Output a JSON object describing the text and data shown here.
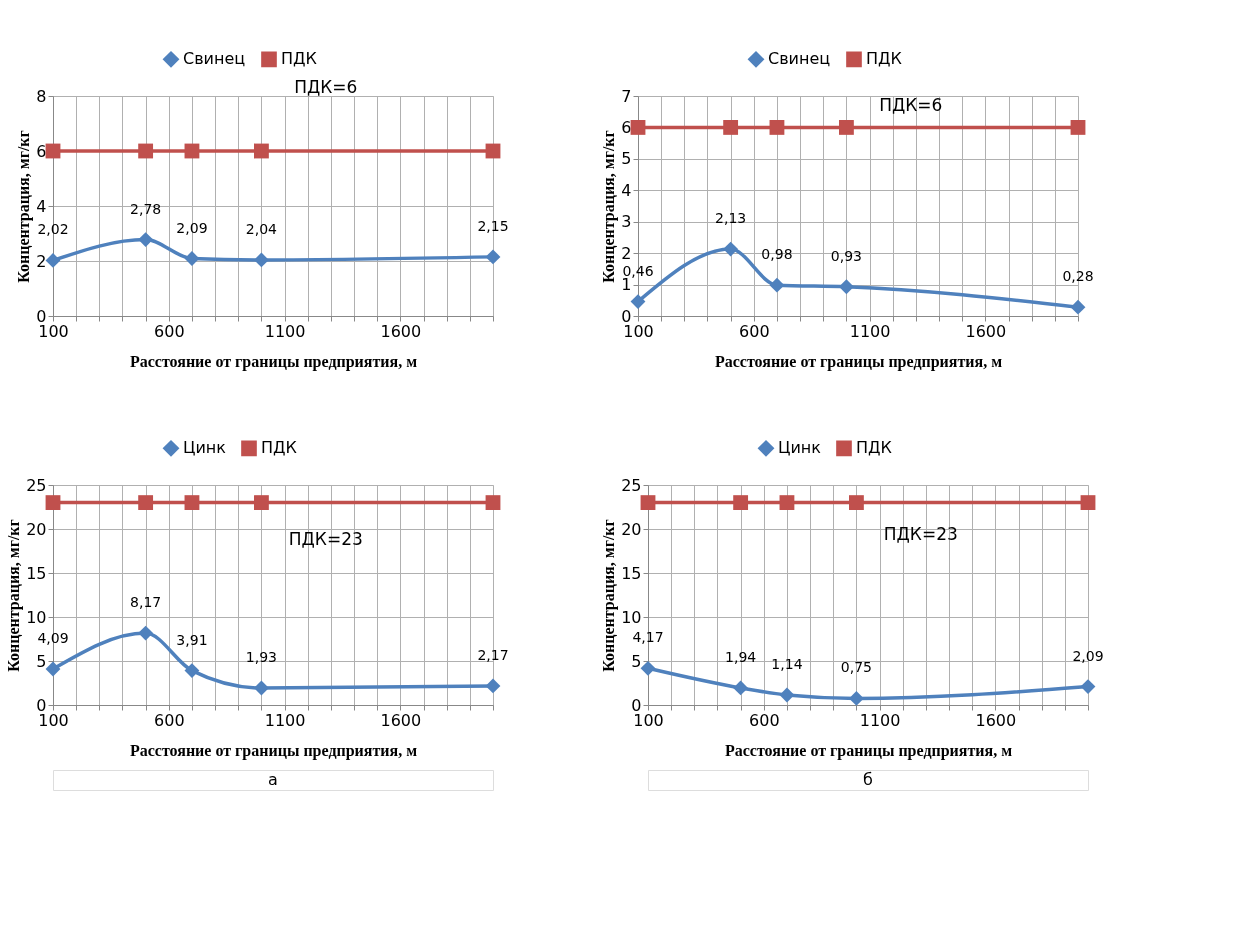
{
  "chart_data": [
    {
      "type": "line",
      "xlabel": "Расстояние от границы предприятия, м",
      "ylabel": "Концентрация, мг/кг",
      "x": [
        100,
        500,
        700,
        1000,
        2000
      ],
      "xlim": [
        100,
        2000
      ],
      "xticks": [
        100,
        {
          "value": 200,
          "label": null
        },
        {
          "value": 300,
          "label": null
        },
        {
          "value": 400,
          "label": null
        },
        {
          "value": 500,
          "label": null
        },
        600,
        {
          "value": 700,
          "label": null
        },
        {
          "value": 800,
          "label": null
        },
        {
          "value": 900,
          "label": null
        },
        {
          "value": 1000,
          "label": null
        },
        1100,
        {
          "value": 1200,
          "label": null
        },
        {
          "value": 1300,
          "label": null
        },
        {
          "value": 1400,
          "label": null
        },
        {
          "value": 1500,
          "label": null
        },
        1600,
        {
          "value": 1700,
          "label": null
        },
        {
          "value": 1800,
          "label": null
        },
        {
          "value": 1900,
          "label": null
        },
        {
          "value": 2000,
          "label": null
        }
      ],
      "ylim": [
        0,
        8
      ],
      "yticks": [
        0,
        2,
        4,
        6,
        8
      ],
      "grid": true,
      "legend": "top",
      "line_style": "solid",
      "series": [
        {
          "name": "Свинец",
          "color": "#4f81bd",
          "marker": "diamond",
          "values": [
            2.02,
            2.78,
            2.09,
            2.04,
            2.15
          ],
          "value_labels": [
            "2,02",
            "2,78",
            "2,09",
            "2,04",
            "2,15"
          ]
        },
        {
          "name": "ПДК",
          "color": "#c0504d",
          "marker": "square",
          "values": [
            6,
            6,
            6,
            6,
            6
          ]
        }
      ],
      "annotations": [
        "ПДК=6"
      ]
    },
    {
      "type": "line",
      "xlabel": "Расстояние от границы предприятия, м",
      "ylabel": "Концентрация, мг/кг",
      "x": [
        100,
        500,
        700,
        1000,
        2000
      ],
      "xlim": [
        100,
        2000
      ],
      "xticks": [
        100,
        {
          "value": 200,
          "label": null
        },
        {
          "value": 300,
          "label": null
        },
        {
          "value": 400,
          "label": null
        },
        {
          "value": 500,
          "label": null
        },
        600,
        {
          "value": 700,
          "label": null
        },
        {
          "value": 800,
          "label": null
        },
        {
          "value": 900,
          "label": null
        },
        {
          "value": 1000,
          "label": null
        },
        1100,
        {
          "value": 1200,
          "label": null
        },
        {
          "value": 1300,
          "label": null
        },
        {
          "value": 1400,
          "label": null
        },
        {
          "value": 1500,
          "label": null
        },
        1600,
        {
          "value": 1700,
          "label": null
        },
        {
          "value": 1800,
          "label": null
        },
        {
          "value": 1900,
          "label": null
        },
        {
          "value": 2000,
          "label": null
        }
      ],
      "ylim": [
        0,
        7
      ],
      "yticks": [
        0,
        1,
        2,
        3,
        4,
        5,
        6,
        7
      ],
      "grid": true,
      "legend": "top",
      "line_style": "solid",
      "series": [
        {
          "name": "Свинец",
          "color": "#4f81bd",
          "marker": "diamond",
          "values": [
            0.46,
            2.13,
            0.98,
            0.93,
            0.28
          ],
          "value_labels": [
            "0,46",
            "2,13",
            "0,98",
            "0,93",
            "0,28"
          ]
        },
        {
          "name": "ПДК",
          "color": "#c0504d",
          "marker": "square",
          "values": [
            6,
            6,
            6,
            6,
            6
          ]
        }
      ],
      "annotations": [
        "ПДК=6"
      ]
    },
    {
      "type": "line",
      "xlabel": "Расстояние от границы предприятия, м",
      "ylabel": "Концентрация, мг/кг",
      "x": [
        100,
        500,
        700,
        1000,
        2000
      ],
      "xlim": [
        100,
        2000
      ],
      "xticks": [
        100,
        {
          "value": 200,
          "label": null
        },
        {
          "value": 300,
          "label": null
        },
        {
          "value": 400,
          "label": null
        },
        {
          "value": 500,
          "label": null
        },
        600,
        {
          "value": 700,
          "label": null
        },
        {
          "value": 800,
          "label": null
        },
        {
          "value": 900,
          "label": null
        },
        {
          "value": 1000,
          "label": null
        },
        1100,
        {
          "value": 1200,
          "label": null
        },
        {
          "value": 1300,
          "label": null
        },
        {
          "value": 1400,
          "label": null
        },
        {
          "value": 1500,
          "label": null
        },
        1600,
        {
          "value": 1700,
          "label": null
        },
        {
          "value": 1800,
          "label": null
        },
        {
          "value": 1900,
          "label": null
        },
        {
          "value": 2000,
          "label": null
        }
      ],
      "ylim": [
        0,
        25
      ],
      "yticks": [
        0,
        5,
        10,
        15,
        20,
        25
      ],
      "grid": true,
      "legend": "top",
      "line_style": "solid",
      "series": [
        {
          "name": "Цинк",
          "color": "#4f81bd",
          "marker": "diamond",
          "values": [
            4.09,
            8.17,
            3.91,
            1.93,
            2.17
          ],
          "value_labels": [
            "4,09",
            "8,17",
            "3,91",
            "1,93",
            "2,17"
          ]
        },
        {
          "name": "ПДК",
          "color": "#c0504d",
          "marker": "square",
          "values": [
            23,
            23,
            23,
            23,
            23
          ]
        }
      ],
      "annotations": [
        "ПДК=23",
        "а"
      ]
    },
    {
      "type": "line",
      "xlabel": "Расстояние от границы предприятия, м",
      "ylabel": "Концентрация, мг/кг",
      "x": [
        100,
        500,
        700,
        1000,
        2000
      ],
      "xlim": [
        100,
        2000
      ],
      "xticks": [
        100,
        {
          "value": 200,
          "label": null
        },
        {
          "value": 300,
          "label": null
        },
        {
          "value": 400,
          "label": null
        },
        {
          "value": 500,
          "label": null
        },
        600,
        {
          "value": 700,
          "label": null
        },
        {
          "value": 800,
          "label": null
        },
        {
          "value": 900,
          "label": null
        },
        {
          "value": 1000,
          "label": null
        },
        1100,
        {
          "value": 1200,
          "label": null
        },
        {
          "value": 1300,
          "label": null
        },
        {
          "value": 1400,
          "label": null
        },
        {
          "value": 1500,
          "label": null
        },
        1600,
        {
          "value": 1700,
          "label": null
        },
        {
          "value": 1800,
          "label": null
        },
        {
          "value": 1900,
          "label": null
        },
        {
          "value": 2000,
          "label": null
        }
      ],
      "ylim": [
        0,
        25
      ],
      "yticks": [
        0,
        5,
        10,
        15,
        20,
        25
      ],
      "grid": true,
      "legend": "top",
      "line_style": "solid",
      "series": [
        {
          "name": "Цинк",
          "color": "#4f81bd",
          "marker": "diamond",
          "values": [
            4.17,
            1.94,
            1.14,
            0.75,
            2.09
          ],
          "value_labels": [
            "4,17",
            "1,94",
            "1,14",
            "0,75",
            "2,09"
          ]
        },
        {
          "name": "ПДК",
          "color": "#c0504d",
          "marker": "square",
          "values": [
            23,
            23,
            23,
            23,
            23
          ]
        }
      ],
      "annotations": [
        "ПДК=23",
        "б"
      ]
    }
  ]
}
